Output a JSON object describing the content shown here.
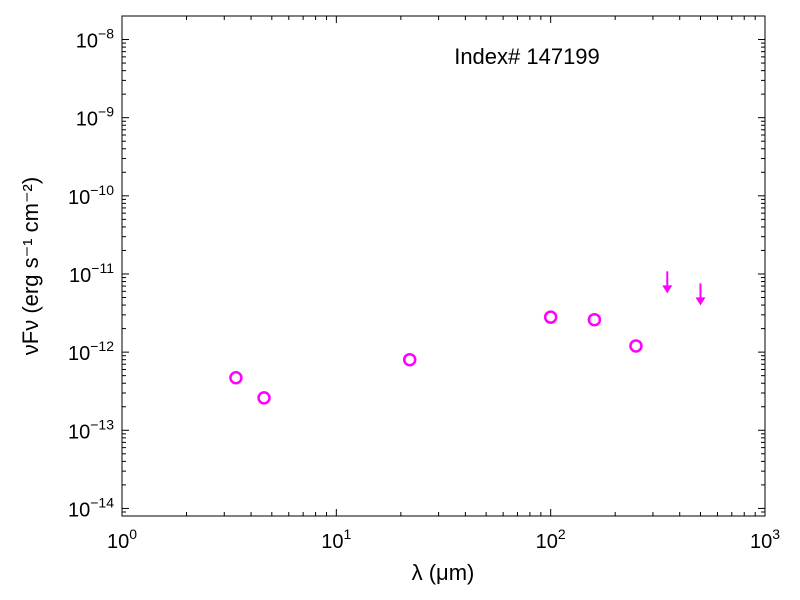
{
  "chart_data": {
    "type": "scatter",
    "xscale": "log",
    "yscale": "log",
    "xlim": [
      1,
      1000
    ],
    "ylim": [
      8e-15,
      2e-08
    ],
    "xlabel": {
      "main": "λ (μm)"
    },
    "ylabel": {
      "main": "νFν (erg s⁻¹ cm⁻²)"
    },
    "xticks": [
      {
        "base": "10",
        "exp": "0"
      },
      {
        "base": "10",
        "exp": "1"
      },
      {
        "base": "10",
        "exp": "2"
      },
      {
        "base": "10",
        "exp": "3"
      }
    ],
    "yticks": [
      {
        "base": "10",
        "exp": "−14"
      },
      {
        "base": "10",
        "exp": "−13"
      },
      {
        "base": "10",
        "exp": "−12"
      },
      {
        "base": "10",
        "exp": "−11"
      },
      {
        "base": "10",
        "exp": "−10"
      },
      {
        "base": "10",
        "exp": "−9"
      },
      {
        "base": "10",
        "exp": "−8"
      }
    ],
    "annotation": "Index# 147199",
    "grid": false,
    "color": "#ff00ff",
    "points": [
      {
        "x": 3.4,
        "y": 4.7e-13
      },
      {
        "x": 4.6,
        "y": 2.6e-13
      },
      {
        "x": 22,
        "y": 8e-13
      },
      {
        "x": 100,
        "y": 2.8e-12
      },
      {
        "x": 160,
        "y": 2.6e-12
      },
      {
        "x": 250,
        "y": 1.2e-12
      }
    ],
    "upper_limits": [
      {
        "x": 350,
        "y": 6e-12
      },
      {
        "x": 500,
        "y": 4.2e-12
      }
    ]
  }
}
